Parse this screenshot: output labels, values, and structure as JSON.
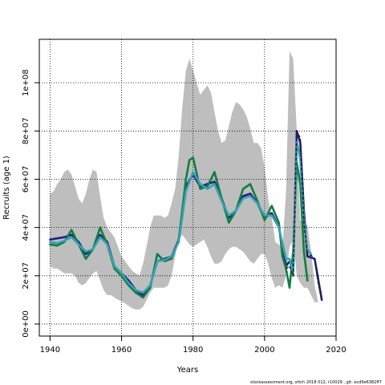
{
  "chart_data": {
    "type": "line",
    "xlabel": "Years",
    "ylabel": "Recruits (age 1)",
    "xlim": [
      1937,
      2020
    ],
    "ylim": [
      -5000000,
      118000000
    ],
    "x_ticks": [
      1940,
      1960,
      1980,
      2000,
      2020
    ],
    "x_tick_labels": [
      "1940",
      "1960",
      "1980",
      "2000",
      "2020"
    ],
    "y_ticks": [
      0,
      20000000,
      40000000,
      60000000,
      80000000,
      100000000
    ],
    "y_tick_labels": [
      "0e+00",
      "2e+07",
      "4e+07",
      "6e+07",
      "8e+07",
      "1e+08"
    ],
    "grid": true,
    "uncertainty_band": {
      "color": "#bebebe",
      "x": [
        1940,
        1941,
        1942,
        1943,
        1944,
        1945,
        1946,
        1947,
        1948,
        1949,
        1950,
        1951,
        1952,
        1953,
        1954,
        1955,
        1956,
        1957,
        1958,
        1959,
        1960,
        1961,
        1962,
        1963,
        1964,
        1965,
        1966,
        1967,
        1968,
        1969,
        1970,
        1971,
        1972,
        1973,
        1974,
        1975,
        1976,
        1977,
        1978,
        1979,
        1980,
        1981,
        1982,
        1983,
        1984,
        1985,
        1986,
        1987,
        1988,
        1989,
        1990,
        1991,
        1992,
        1993,
        1994,
        1995,
        1996,
        1997,
        1998,
        1999,
        2000,
        2001,
        2002,
        2003,
        2004,
        2005,
        2006,
        2007,
        2008,
        2009,
        2010,
        2011,
        2012,
        2013,
        2014,
        2015,
        2016
      ],
      "upper": [
        54000000,
        55000000,
        58000000,
        60000000,
        63000000,
        64000000,
        62000000,
        57000000,
        52000000,
        50000000,
        54000000,
        60000000,
        64000000,
        63000000,
        53000000,
        44000000,
        40000000,
        38000000,
        36000000,
        32000000,
        28000000,
        26000000,
        24000000,
        22000000,
        21000000,
        20000000,
        25000000,
        32000000,
        40000000,
        45000000,
        45000000,
        45000000,
        44000000,
        45000000,
        50000000,
        56000000,
        70000000,
        90000000,
        105000000,
        110000000,
        105000000,
        100000000,
        95000000,
        97000000,
        99000000,
        96000000,
        88000000,
        80000000,
        75000000,
        76000000,
        82000000,
        88000000,
        92000000,
        91000000,
        89000000,
        86000000,
        81000000,
        75000000,
        75000000,
        73000000,
        65000000,
        52000000,
        44000000,
        34000000,
        33000000,
        31000000,
        55000000,
        113000000,
        110000000,
        80000000,
        43000000,
        42000000,
        41000000,
        30000000,
        16000000,
        9000000,
        9000000
      ],
      "lower": [
        24000000,
        23000000,
        23000000,
        22000000,
        21000000,
        21000000,
        21000000,
        20000000,
        17000000,
        16000000,
        17000000,
        19000000,
        21000000,
        22000000,
        18000000,
        14000000,
        12000000,
        12000000,
        11000000,
        10000000,
        9500000,
        8500000,
        7500000,
        6500000,
        6000000,
        6000000,
        7000000,
        10000000,
        13000000,
        15000000,
        15000000,
        15000000,
        15000000,
        16000000,
        20000000,
        28000000,
        35000000,
        37000000,
        35000000,
        33000000,
        32000000,
        33000000,
        34000000,
        35000000,
        32000000,
        28000000,
        25000000,
        25000000,
        26000000,
        29000000,
        31000000,
        32000000,
        32000000,
        31000000,
        30000000,
        28000000,
        26000000,
        25000000,
        27000000,
        29000000,
        29000000,
        25000000,
        19000000,
        15000000,
        16000000,
        15000000,
        20000000,
        32000000,
        35000000,
        20000000,
        17000000,
        15000000,
        15000000,
        12000000,
        9000000,
        9000000,
        9000000
      ]
    },
    "series": [
      {
        "color": "#221c8c",
        "x": [
          1940,
          1942,
          1944,
          1946,
          1948,
          1950,
          1952,
          1954,
          1956,
          1958,
          1960,
          1962,
          1964,
          1966,
          1968,
          1970,
          1972,
          1974,
          1976,
          1978,
          1980,
          1982,
          1984,
          1986,
          1988,
          1990,
          1992,
          1994,
          1996,
          1998,
          2000,
          2002,
          2004,
          2006,
          2007,
          2008,
          2009,
          2010,
          2011,
          2012,
          2014,
          2016
        ],
        "values": [
          35000000,
          35500000,
          36000000,
          37000000,
          34000000,
          29000000,
          31000000,
          37000000,
          34000000,
          24000000,
          21000000,
          18000000,
          14000000,
          12000000,
          16000000,
          26000000,
          27000000,
          28000000,
          35000000,
          57000000,
          62000000,
          57000000,
          58000000,
          59000000,
          52000000,
          44000000,
          47000000,
          53000000,
          54000000,
          50000000,
          44000000,
          46000000,
          40000000,
          24000000,
          26000000,
          22000000,
          80000000,
          75000000,
          47000000,
          28000000,
          27000000,
          10000000
        ]
      },
      {
        "color": "#0f7f3e",
        "x": [
          1940,
          1942,
          1944,
          1946,
          1948,
          1950,
          1952,
          1954,
          1956,
          1958,
          1960,
          1962,
          1964,
          1966,
          1968,
          1970,
          1972,
          1974,
          1976,
          1978,
          1979,
          1980,
          1982,
          1984,
          1986,
          1988,
          1990,
          1992,
          1994,
          1996,
          1998,
          2000,
          2002,
          2004,
          2005,
          2006,
          2007,
          2008,
          2009,
          2010,
          2011,
          2012
        ],
        "values": [
          33000000,
          32500000,
          34000000,
          39000000,
          33000000,
          27000000,
          31000000,
          40000000,
          33000000,
          23000000,
          20000000,
          16000000,
          13000000,
          11000000,
          15000000,
          29000000,
          26000000,
          27000000,
          35000000,
          60000000,
          68000000,
          69000000,
          56000000,
          57000000,
          63000000,
          52000000,
          42000000,
          47000000,
          56000000,
          58000000,
          51000000,
          43000000,
          49000000,
          42000000,
          28000000,
          23000000,
          15000000,
          30000000,
          67000000,
          58000000,
          30000000,
          18000000
        ]
      },
      {
        "color": "#36a2b4",
        "x": [
          1940,
          1942,
          1944,
          1946,
          1948,
          1950,
          1952,
          1954,
          1956,
          1958,
          1960,
          1962,
          1964,
          1966,
          1968,
          1970,
          1972,
          1974,
          1976,
          1978,
          1980,
          1982,
          1984,
          1986,
          1988,
          1990,
          1992,
          1994,
          1996,
          1998,
          2000,
          2002,
          2004,
          2006,
          2007,
          2008,
          2009,
          2010,
          2011,
          2012,
          2013
        ],
        "values": [
          34000000,
          33500000,
          34500000,
          36000000,
          33000000,
          30000000,
          31000000,
          36000000,
          33000000,
          24000000,
          21000000,
          17000000,
          14000000,
          13000000,
          16000000,
          26000000,
          26500000,
          28000000,
          34000000,
          55000000,
          63000000,
          58000000,
          56000000,
          58000000,
          51000000,
          45000000,
          47000000,
          52000000,
          53000000,
          50000000,
          45000000,
          45000000,
          40000000,
          27000000,
          27000000,
          20000000,
          76000000,
          68000000,
          43000000,
          31000000,
          29000000
        ]
      },
      {
        "color": "#222222",
        "dashed": true,
        "x": [
          2006,
          2007,
          2008,
          2009,
          2010,
          2011,
          2012,
          2013,
          2014,
          2015,
          2016
        ],
        "values": [
          23000000,
          24000000,
          20000000,
          80000000,
          77000000,
          42000000,
          28000000,
          28500000,
          27000000,
          17000000,
          10000000
        ]
      }
    ]
  },
  "footer": "stockassessment.org,  sttch 2018 012, r10029 ,  git: ecd9e6382ff7"
}
